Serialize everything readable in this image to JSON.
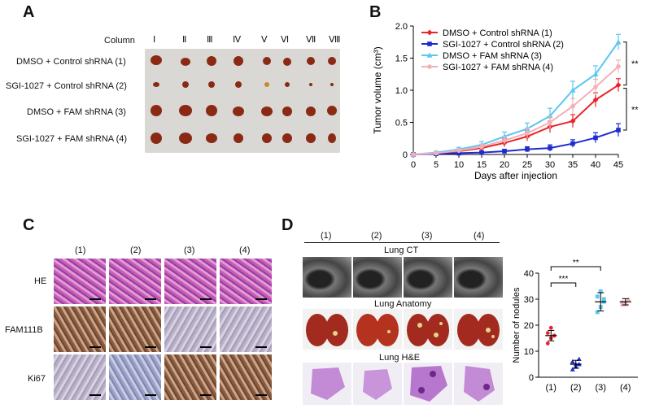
{
  "panels": {
    "A": {
      "letter": "A",
      "column_header": "Column",
      "columns": [
        "Ⅰ",
        "Ⅱ",
        "Ⅲ",
        "Ⅳ",
        "Ⅴ",
        "Ⅵ",
        "Ⅶ",
        "Ⅷ"
      ],
      "rows": [
        "DMSO + Control shRNA (1)",
        "SGI-1027 + Control shRNA (2)",
        "DMSO + FAM shRNA (3)",
        "SGI-1027 + FAM shRNA (4)"
      ]
    },
    "B": {
      "letter": "B"
    },
    "C": {
      "letter": "C",
      "columns": [
        "(1)",
        "(2)",
        "(3)",
        "(4)"
      ],
      "rows": [
        "HE",
        "FAM111B",
        "Ki67"
      ]
    },
    "D": {
      "letter": "D",
      "columns": [
        "(1)",
        "(2)",
        "(3)",
        "(4)"
      ],
      "sections": [
        "Lung CT",
        "Lung Anatomy",
        "Lung H&E"
      ]
    }
  },
  "chart_data": [
    {
      "type": "line",
      "panel": "B",
      "xlabel": "Days after injection",
      "ylabel": "Tumor volume (cm³)",
      "xticks": [
        0,
        5,
        10,
        15,
        20,
        25,
        30,
        35,
        40,
        45
      ],
      "yticks": [
        0,
        0.5,
        1.0,
        1.5,
        2.0
      ],
      "ytick_labels": [
        "0",
        "0.5",
        "1.0",
        "1.5",
        "2.0"
      ],
      "ylim": [
        0,
        2.0
      ],
      "legend_position": "top-left",
      "x": [
        0,
        5,
        10,
        15,
        20,
        25,
        30,
        35,
        40,
        45
      ],
      "significance": [
        "**",
        "**"
      ],
      "series": [
        {
          "name": "DMSO + Control shRNA (1)",
          "color": "#e8262a",
          "marker": "diamond",
          "values": [
            0,
            0.02,
            0.05,
            0.1,
            0.18,
            0.28,
            0.43,
            0.52,
            0.85,
            1.08
          ],
          "errors": [
            0.01,
            0.02,
            0.03,
            0.05,
            0.06,
            0.07,
            0.09,
            0.1,
            0.11,
            0.1
          ]
        },
        {
          "name": "SGI-1027 + Control shRNA (2)",
          "color": "#1f2bd0",
          "marker": "square",
          "values": [
            0,
            0.01,
            0.02,
            0.03,
            0.05,
            0.08,
            0.1,
            0.17,
            0.26,
            0.38
          ],
          "errors": [
            0.01,
            0.01,
            0.02,
            0.02,
            0.03,
            0.04,
            0.05,
            0.06,
            0.08,
            0.1
          ]
        },
        {
          "name": "DMSO + FAM shRNA (3)",
          "color": "#5bc8ef",
          "marker": "triangle",
          "values": [
            0,
            0.03,
            0.08,
            0.15,
            0.28,
            0.4,
            0.6,
            1.0,
            1.25,
            1.75
          ],
          "errors": [
            0.01,
            0.02,
            0.03,
            0.05,
            0.07,
            0.09,
            0.12,
            0.14,
            0.13,
            0.12
          ]
        },
        {
          "name": "SGI-1027 + FAM shRNA (4)",
          "color": "#f4b0b6",
          "marker": "circle",
          "values": [
            0,
            0.02,
            0.06,
            0.12,
            0.22,
            0.33,
            0.5,
            0.75,
            1.05,
            1.37
          ],
          "errors": [
            0.01,
            0.02,
            0.03,
            0.04,
            0.06,
            0.08,
            0.1,
            0.12,
            0.12,
            0.1
          ]
        }
      ]
    },
    {
      "type": "scatter",
      "panel": "D",
      "ylabel": "Number of nodules",
      "categories": [
        "(1)",
        "(2)",
        "(3)",
        "(4)"
      ],
      "yticks": [
        0,
        10,
        20,
        30,
        40
      ],
      "ylim": [
        0,
        40
      ],
      "significance": [
        "***",
        "**"
      ],
      "groups": [
        {
          "category": "(1)",
          "color": "#e8262a",
          "marker": "circle",
          "mean": 16,
          "sd": 2,
          "points": [
            13,
            15,
            16,
            17,
            19,
            16
          ]
        },
        {
          "category": "(2)",
          "color": "#1f2bd0",
          "marker": "triangle",
          "mean": 5,
          "sd": 1.5,
          "points": [
            3,
            4,
            5,
            6,
            5,
            7
          ]
        },
        {
          "category": "(3)",
          "color": "#5bc8ef",
          "marker": "square",
          "mean": 29,
          "sd": 3.5,
          "points": [
            25,
            27,
            29,
            31,
            33,
            30
          ]
        },
        {
          "category": "(4)",
          "color": "#f4b0b6",
          "marker": "triangle",
          "mean": 29,
          "sd": 1.2,
          "points": [
            28,
            29,
            30,
            29,
            28
          ]
        }
      ]
    }
  ]
}
